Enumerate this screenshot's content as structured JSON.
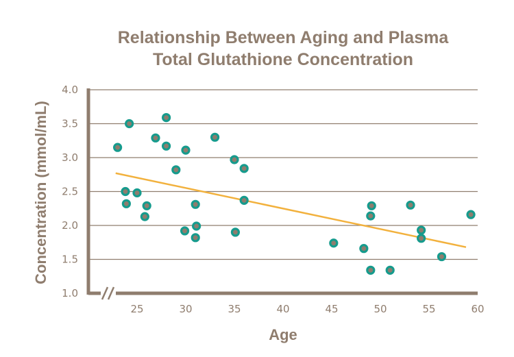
{
  "chart_data": {
    "type": "scatter",
    "title": [
      "Relationship Between Aging and Plasma",
      "Total Glutathione Concentration"
    ],
    "xlabel": "Age",
    "ylabel": "Concentration (mmol/mL)",
    "xlim": [
      20,
      60
    ],
    "ylim": [
      1.0,
      4.0
    ],
    "xticks": [
      25,
      30,
      35,
      40,
      45,
      50,
      55,
      60
    ],
    "xtick_labels": [
      "25",
      "30",
      "35",
      "40",
      "45",
      "50",
      "55",
      "60"
    ],
    "yticks": [
      1.0,
      1.5,
      2.0,
      2.5,
      3.0,
      3.5,
      4.0
    ],
    "ytick_labels": [
      "1.0",
      "1.5",
      "2.0",
      "2.5",
      "3.0",
      "3.5",
      "4.0"
    ],
    "grid": true,
    "axis_break": "//",
    "points": [
      {
        "x": 23.0,
        "y": 3.15
      },
      {
        "x": 24.2,
        "y": 3.5
      },
      {
        "x": 23.8,
        "y": 2.5
      },
      {
        "x": 23.9,
        "y": 2.32
      },
      {
        "x": 25.0,
        "y": 2.48
      },
      {
        "x": 26.0,
        "y": 2.29
      },
      {
        "x": 25.8,
        "y": 2.13
      },
      {
        "x": 26.9,
        "y": 3.29
      },
      {
        "x": 28.0,
        "y": 3.59
      },
      {
        "x": 28.0,
        "y": 3.17
      },
      {
        "x": 29.0,
        "y": 2.82
      },
      {
        "x": 30.0,
        "y": 3.11
      },
      {
        "x": 29.9,
        "y": 1.92
      },
      {
        "x": 31.0,
        "y": 2.31
      },
      {
        "x": 31.1,
        "y": 1.99
      },
      {
        "x": 31.0,
        "y": 1.82
      },
      {
        "x": 33.0,
        "y": 3.3
      },
      {
        "x": 35.0,
        "y": 2.97
      },
      {
        "x": 35.1,
        "y": 1.9
      },
      {
        "x": 36.0,
        "y": 2.84
      },
      {
        "x": 36.0,
        "y": 2.37
      },
      {
        "x": 45.2,
        "y": 1.74
      },
      {
        "x": 48.3,
        "y": 1.66
      },
      {
        "x": 49.0,
        "y": 2.14
      },
      {
        "x": 49.1,
        "y": 2.29
      },
      {
        "x": 49.0,
        "y": 1.34
      },
      {
        "x": 51.0,
        "y": 1.34
      },
      {
        "x": 53.1,
        "y": 2.3
      },
      {
        "x": 54.2,
        "y": 1.93
      },
      {
        "x": 54.2,
        "y": 1.81
      },
      {
        "x": 56.3,
        "y": 1.54
      },
      {
        "x": 59.3,
        "y": 2.16
      }
    ],
    "trendline": {
      "x": [
        22.8,
        58.8
      ],
      "y": [
        2.77,
        1.68
      ]
    },
    "colors": {
      "point_fill": "#8f7d6e",
      "point_stroke": "#169b8d",
      "trendline": "#f2b13d",
      "axis": "#8f7d6e",
      "grid": "#8f7d6e",
      "text": "#8f7d6e"
    }
  }
}
